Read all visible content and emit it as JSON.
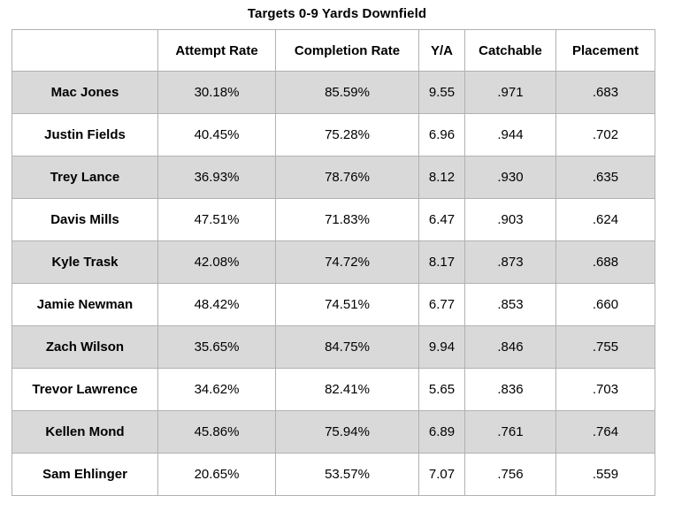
{
  "page": {
    "title": "Targets 0-9 Yards Downfield"
  },
  "colors": {
    "shaded_row": "#d9d9d9",
    "plain_row": "#ffffff",
    "grid_border": "#b1b1b1",
    "text": "#000000"
  },
  "chart_data": {
    "type": "table",
    "title": "Targets 0-9 Yards Downfield",
    "columns": [
      "",
      "Attempt Rate",
      "Completion Rate",
      "Y/A",
      "Catchable",
      "Placement"
    ],
    "rows": [
      [
        "Mac Jones",
        "30.18%",
        "85.59%",
        "9.55",
        ".971",
        ".683"
      ],
      [
        "Justin Fields",
        "40.45%",
        "75.28%",
        "6.96",
        ".944",
        ".702"
      ],
      [
        "Trey Lance",
        "36.93%",
        "78.76%",
        "8.12",
        ".930",
        ".635"
      ],
      [
        "Davis Mills",
        "47.51%",
        "71.83%",
        "6.47",
        ".903",
        ".624"
      ],
      [
        "Kyle Trask",
        "42.08%",
        "74.72%",
        "8.17",
        ".873",
        ".688"
      ],
      [
        "Jamie Newman",
        "48.42%",
        "74.51%",
        "6.77",
        ".853",
        ".660"
      ],
      [
        "Zach Wilson",
        "35.65%",
        "84.75%",
        "9.94",
        ".846",
        ".755"
      ],
      [
        "Trevor Lawrence",
        "34.62%",
        "82.41%",
        "5.65",
        ".836",
        ".703"
      ],
      [
        "Kellen Mond",
        "45.86%",
        "75.94%",
        "6.89",
        ".761",
        ".764"
      ],
      [
        "Sam Ehlinger",
        "20.65%",
        "53.57%",
        "7.07",
        ".756",
        ".559"
      ]
    ],
    "layout": {
      "row_shading": "alternating, first data row shaded",
      "name_column_bold": true,
      "all_cells_centered": true,
      "grid": true
    }
  }
}
